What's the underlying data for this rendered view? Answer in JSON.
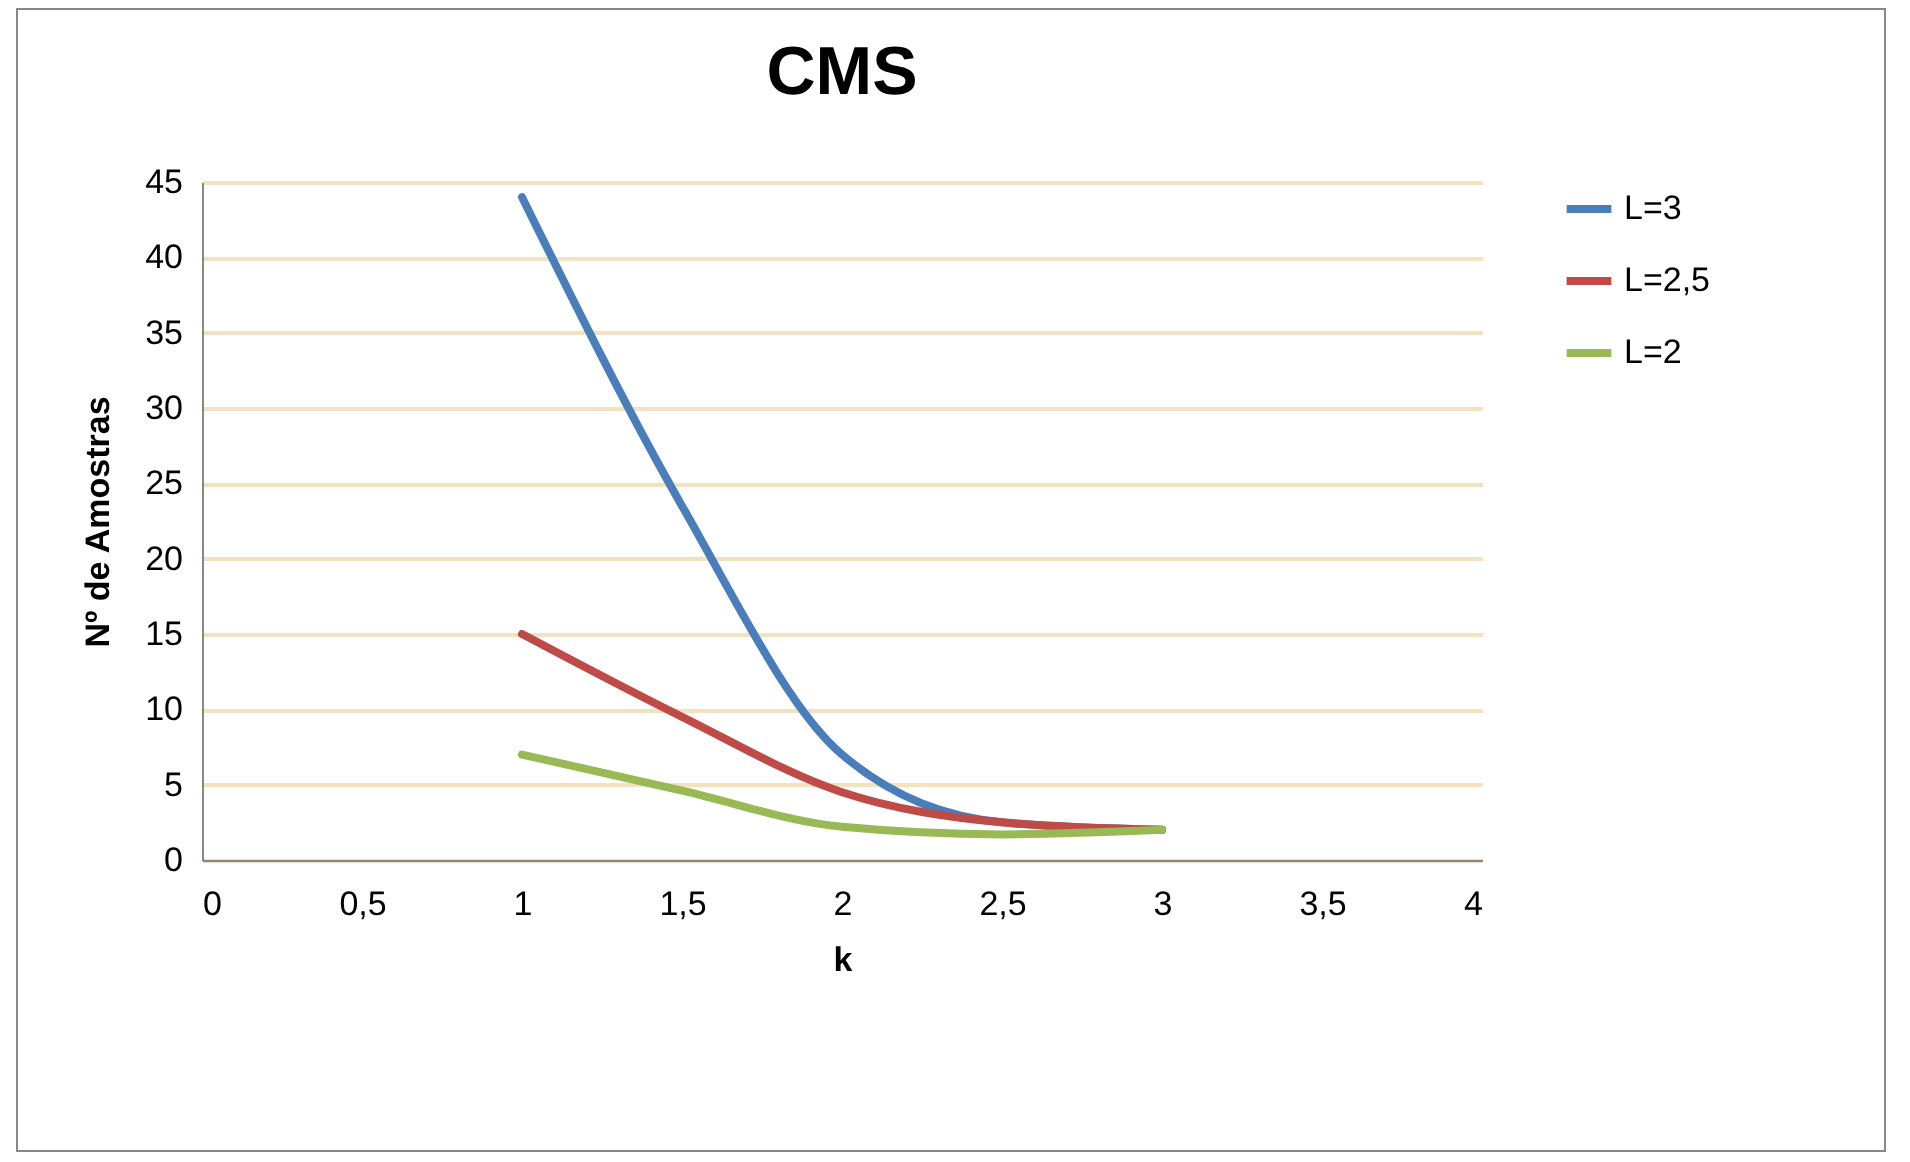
{
  "chart_data": {
    "type": "line",
    "title": "CMS",
    "xlabel": "k",
    "ylabel": "Nº de Amostras",
    "x": [
      1,
      1.5,
      2,
      2.5,
      3
    ],
    "series": [
      {
        "name": "L=3",
        "color": "#4a7ebb",
        "values": [
          44,
          23.5,
          7,
          2.5,
          2
        ]
      },
      {
        "name": "L=2,5",
        "color": "#be4b48",
        "values": [
          15,
          9.5,
          4.5,
          2.5,
          2
        ]
      },
      {
        "name": "L=2",
        "color": "#98b954",
        "values": [
          7,
          4.6,
          2.2,
          1.7,
          2
        ]
      }
    ],
    "xlim": [
      0,
      4
    ],
    "xticks": [
      0,
      {
        "value": 0.5,
        "label": "0,5"
      },
      1,
      {
        "value": 1.5,
        "label": "1,5"
      },
      2,
      {
        "value": 2.5,
        "label": "2,5"
      },
      3,
      {
        "value": 3.5,
        "label": "3,5"
      },
      4
    ],
    "ylim": [
      0,
      45
    ],
    "yticks": [
      0,
      5,
      10,
      15,
      20,
      25,
      30,
      35,
      40,
      45
    ],
    "grid": "y",
    "legend": "right",
    "marker": "none",
    "line_style": "solid"
  }
}
